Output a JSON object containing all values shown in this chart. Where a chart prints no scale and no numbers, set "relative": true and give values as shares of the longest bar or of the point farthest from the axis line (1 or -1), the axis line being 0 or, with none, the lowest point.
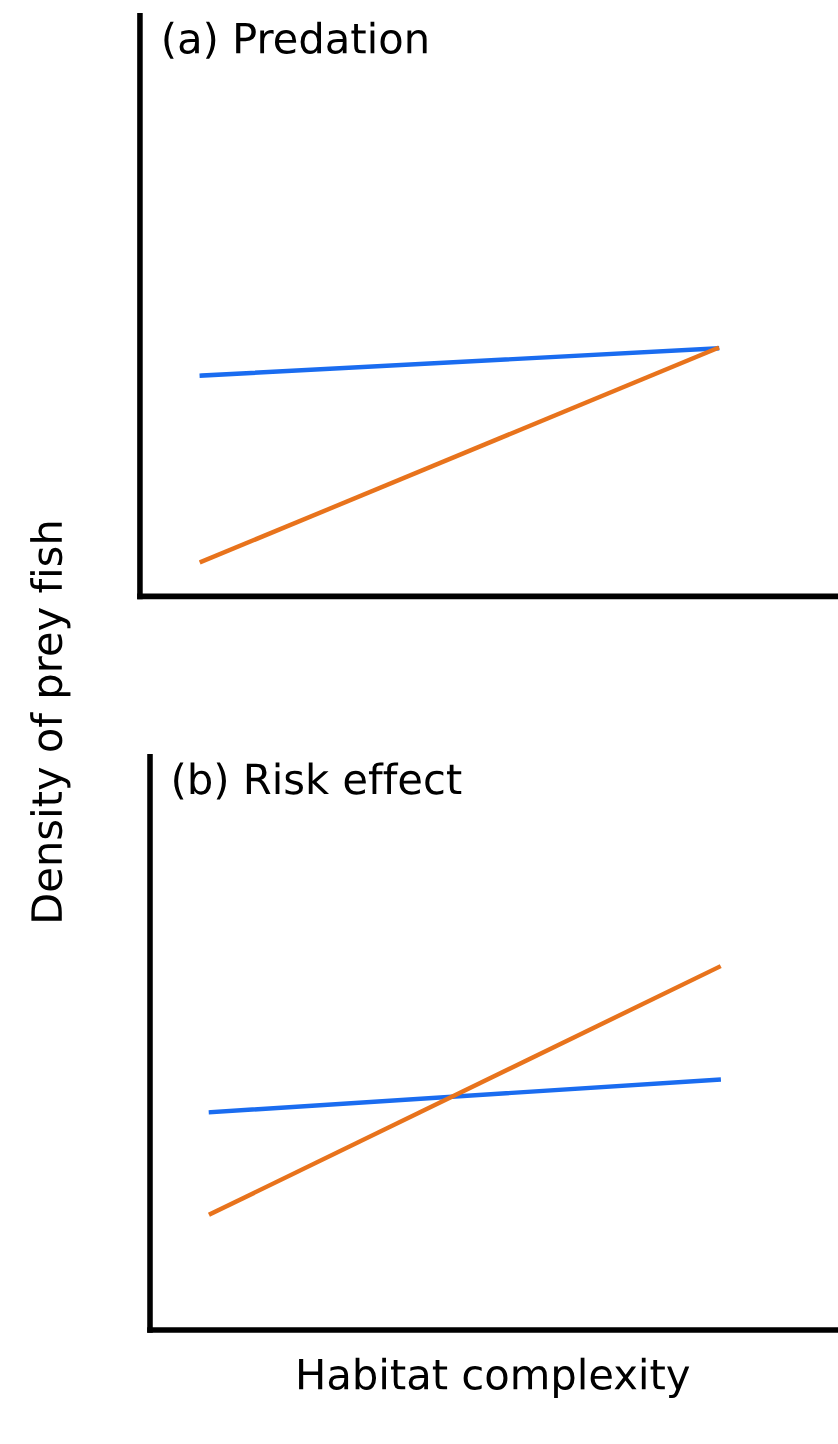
{
  "chart_data": [
    {
      "type": "line",
      "title": "(a) Predation",
      "ylabel": "Density of prey fish",
      "relative": true,
      "categories": [
        null,
        null
      ],
      "series": [
        {
          "color": "#1a6cf0",
          "values": [
            0.89,
            1.0
          ]
        },
        {
          "color": "#e8731c",
          "values": [
            0.14,
            1.0
          ]
        }
      ],
      "grid": false,
      "legend": false,
      "marker": "none",
      "line_style": "solid",
      "tick_labels": false
    },
    {
      "type": "line",
      "title": "(b) Risk effect",
      "xlabel": "Habitat complexity",
      "relative": true,
      "categories": [
        null,
        null
      ],
      "series": [
        {
          "color": "#1a6cf0",
          "values": [
            0.6,
            0.69
          ]
        },
        {
          "color": "#e8731c",
          "values": [
            0.32,
            1.0
          ]
        }
      ],
      "grid": false,
      "legend": false,
      "marker": "none",
      "line_style": "solid",
      "tick_labels": false
    }
  ]
}
